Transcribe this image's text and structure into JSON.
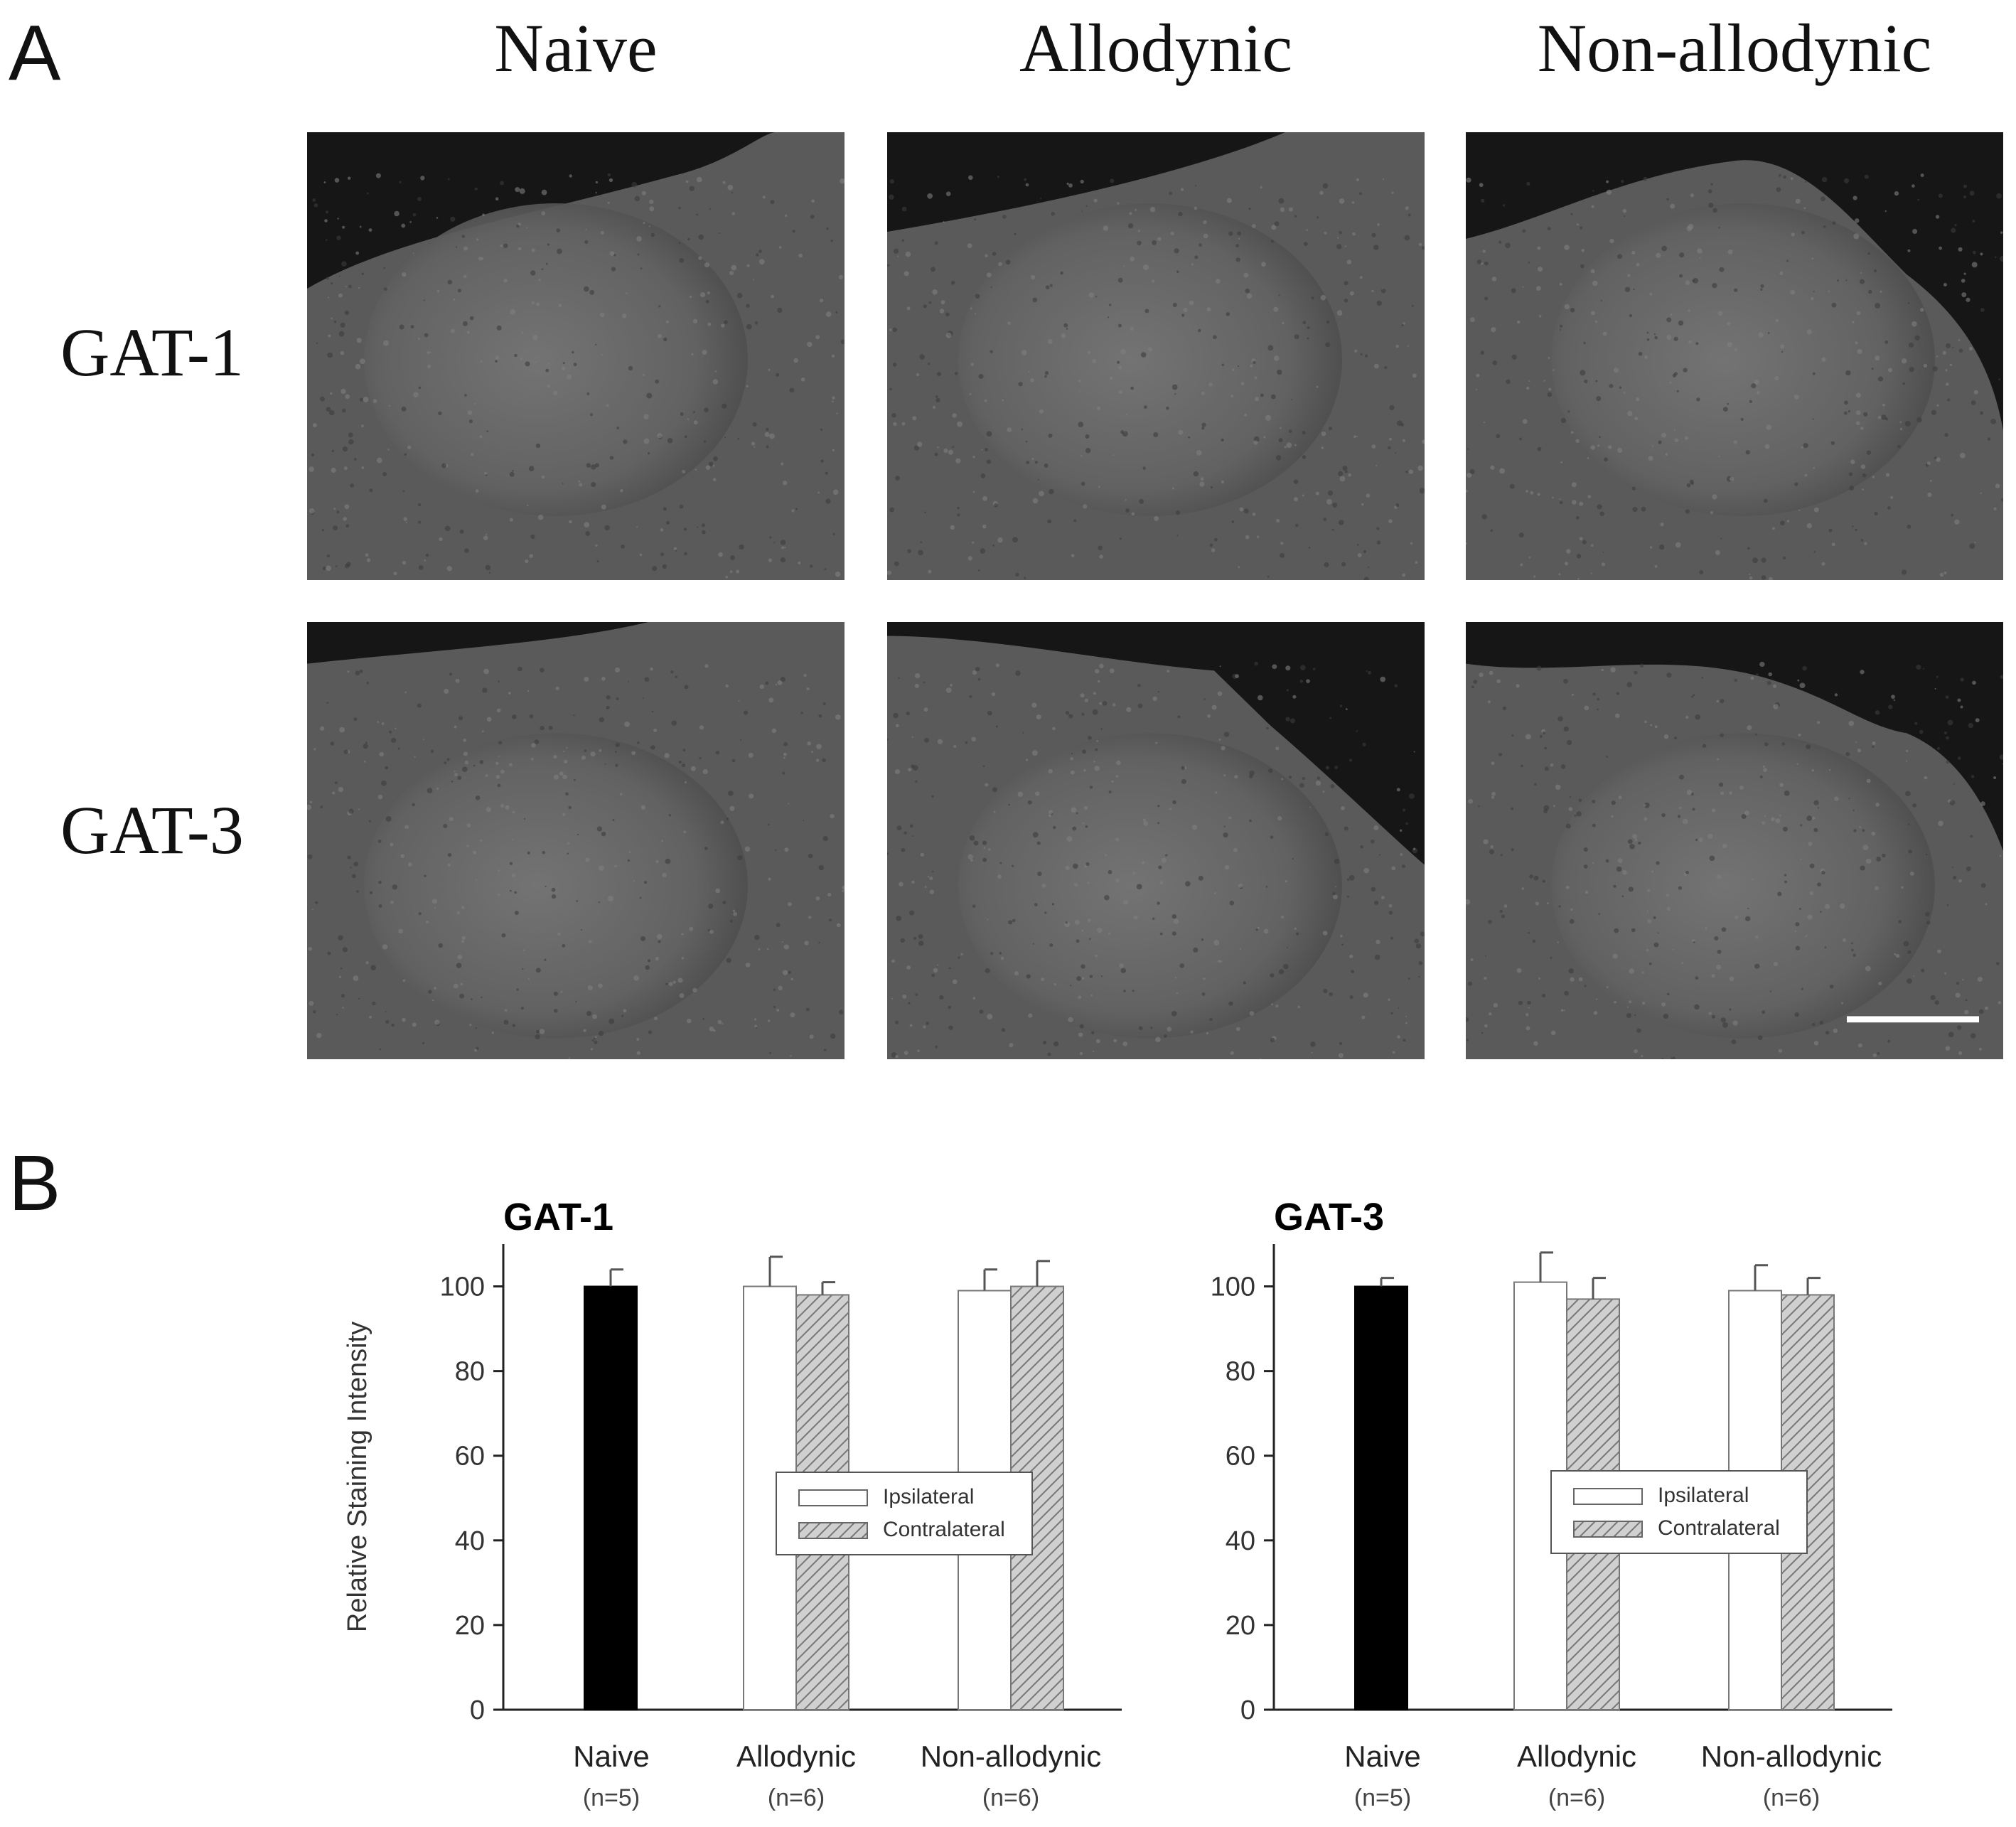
{
  "panel_a": {
    "letter": "A",
    "columns": [
      "Naive",
      "Allodynic",
      "Non-allodynic"
    ],
    "rows": [
      "GAT-1",
      "GAT-3"
    ]
  },
  "panel_b": {
    "letter": "B"
  },
  "colors": {
    "naive_bar": "#000000",
    "ipsilateral": "#ffffff",
    "contralateral_fill": "#d0d0d0",
    "hatch": "#777777",
    "tissue_bg": "#161616",
    "tissue": "#5a5a5a"
  },
  "chart_data": [
    {
      "type": "bar",
      "title": "GAT-1",
      "ylabel": "Relative Staining Intensity",
      "ylim": [
        0,
        110
      ],
      "yticks": [
        0,
        20,
        40,
        60,
        80,
        100
      ],
      "categories": [
        "Naive",
        "Allodynic",
        "Non-allodynic"
      ],
      "category_n": [
        "(n=5)",
        "(n=6)",
        "(n=6)"
      ],
      "legend": {
        "position": "center-right",
        "entries": [
          "Ipsilateral",
          "Contralateral"
        ]
      },
      "series": [
        {
          "name": "Naive",
          "style": "solid-black",
          "values": [
            100,
            null,
            null
          ],
          "errors": [
            4,
            null,
            null
          ]
        },
        {
          "name": "Ipsilateral",
          "style": "white",
          "values": [
            null,
            100,
            99
          ],
          "errors": [
            null,
            7,
            5
          ]
        },
        {
          "name": "Contralateral",
          "style": "hatched",
          "values": [
            null,
            98,
            100
          ],
          "errors": [
            null,
            3,
            6
          ]
        }
      ]
    },
    {
      "type": "bar",
      "title": "GAT-3",
      "ylabel": "",
      "ylim": [
        0,
        110
      ],
      "yticks": [
        0,
        20,
        40,
        60,
        80,
        100
      ],
      "categories": [
        "Naive",
        "Allodynic",
        "Non-allodynic"
      ],
      "category_n": [
        "(n=5)",
        "(n=6)",
        "(n=6)"
      ],
      "legend": {
        "position": "center-right",
        "entries": [
          "Ipsilateral",
          "Contralateral"
        ]
      },
      "series": [
        {
          "name": "Naive",
          "style": "solid-black",
          "values": [
            100,
            null,
            null
          ],
          "errors": [
            2,
            null,
            null
          ]
        },
        {
          "name": "Ipsilateral",
          "style": "white",
          "values": [
            null,
            101,
            99
          ],
          "errors": [
            null,
            7,
            6
          ]
        },
        {
          "name": "Contralateral",
          "style": "hatched",
          "values": [
            null,
            97,
            98
          ],
          "errors": [
            null,
            5,
            4
          ]
        }
      ]
    }
  ]
}
